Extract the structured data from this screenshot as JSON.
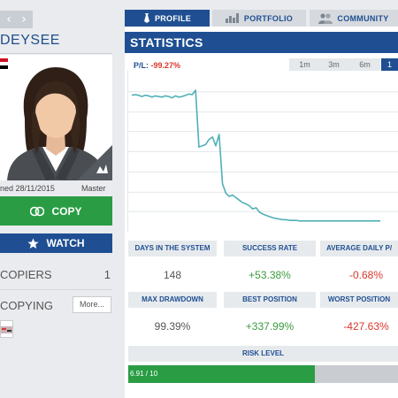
{
  "left": {
    "username": "DEYSEE",
    "joined": "ned 28/11/2015",
    "level": "Master",
    "copy_label": "COPY",
    "watch_label": "WATCH",
    "copiers_label": "COPIERS",
    "copiers_value": "1",
    "copying_label": "COPYING",
    "more_label": "More..."
  },
  "tabs": [
    {
      "label": "PROFILE",
      "icon": "tie-icon"
    },
    {
      "label": "PORTFOLIO",
      "icon": "bar-chart-icon"
    },
    {
      "label": "COMMUNITY",
      "icon": "people-icon"
    }
  ],
  "stats": {
    "title": "STATISTICS",
    "pl_label": "P/L:",
    "pl_value": "-99.27%",
    "ranges": [
      "1m",
      "3m",
      "6m",
      "1"
    ],
    "row1_headers": [
      "DAYS IN THE SYSTEM",
      "SUCCESS RATE",
      "AVERAGE DAILY P/"
    ],
    "row1_values": [
      "148",
      "+53.38%",
      "-0.68%"
    ],
    "row2_headers": [
      "MAX DRAWDOWN",
      "BEST POSITION",
      "WORST POSITION"
    ],
    "row2_values": [
      "99.39%",
      "+337.99%",
      "-427.63%"
    ],
    "risk_label": "RISK LEVEL",
    "risk_value": "6.91 / 10",
    "risk_fraction": 0.691
  },
  "chart_data": {
    "type": "line",
    "x": [
      0,
      2,
      4,
      6,
      8,
      10,
      12,
      14,
      16,
      18,
      20,
      22,
      24,
      26,
      28,
      30,
      32,
      34,
      36,
      38,
      40,
      42,
      44,
      46,
      48,
      50,
      52,
      54,
      56,
      58,
      60,
      62,
      64,
      66,
      68,
      70,
      72,
      74,
      76,
      78,
      80,
      82,
      84,
      86,
      88,
      90,
      92,
      94,
      96,
      98,
      100,
      105,
      110,
      115,
      120,
      125,
      130,
      135,
      140,
      148
    ],
    "values": [
      100,
      101,
      100,
      98,
      100,
      99,
      97,
      99,
      98,
      97,
      99,
      98,
      96,
      99,
      97,
      98,
      100,
      102,
      101,
      108,
      18,
      20,
      22,
      30,
      34,
      20,
      38,
      -40,
      -55,
      -60,
      -58,
      -62,
      -66,
      -70,
      -72,
      -75,
      -80,
      -78,
      -85,
      -88,
      -90,
      -92,
      -94,
      -95,
      -96,
      -97,
      -97,
      -98,
      -98,
      -98,
      -99,
      -99,
      -99,
      -99,
      -99,
      -99,
      -99,
      -99,
      -99,
      -99
    ],
    "ylim": [
      -110,
      130
    ],
    "grid": true,
    "color": "#4fb0b6"
  }
}
